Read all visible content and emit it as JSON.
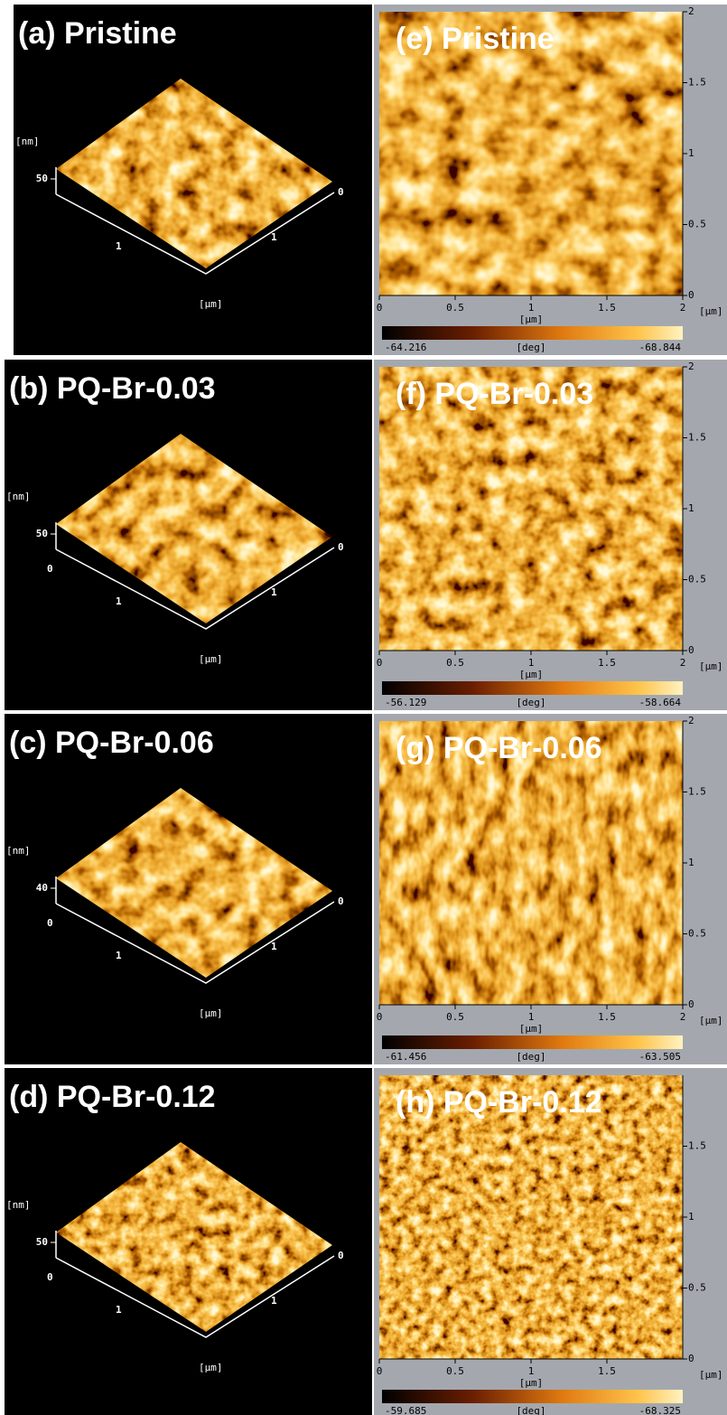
{
  "panels_3d": [
    {
      "label": "(a) Pristine",
      "z_unit": "[nm]",
      "z_tick": "50",
      "left_axis_ticks": [
        "1"
      ],
      "right_axis_ticks": [
        "0",
        "1"
      ],
      "xy_unit": "[µm]"
    },
    {
      "label": "(b) PQ-Br-0.03",
      "z_unit": "[nm]",
      "z_tick": "50",
      "left_axis_ticks": [
        "0",
        "1"
      ],
      "right_axis_ticks": [
        "0",
        "1"
      ],
      "xy_unit": "[µm]"
    },
    {
      "label": "(c) PQ-Br-0.06",
      "z_unit": "[nm]",
      "z_tick": "40",
      "left_axis_ticks": [
        "0",
        "1"
      ],
      "right_axis_ticks": [
        "0",
        "1"
      ],
      "xy_unit": "[µm]"
    },
    {
      "label": "(d) PQ-Br-0.12",
      "z_unit": "[nm]",
      "z_tick": "50",
      "left_axis_ticks": [
        "0",
        "1"
      ],
      "right_axis_ticks": [
        "0",
        "1"
      ],
      "xy_unit": "[µm]"
    }
  ],
  "panels_phase": [
    {
      "label": "(e) Pristine",
      "y_ticks": [
        "2",
        "1.5",
        "1",
        "0.5",
        "0"
      ],
      "x_ticks": [
        "0",
        "0.5",
        "1",
        "1.5",
        "2"
      ],
      "x_unit": "[µm]",
      "y_unit": "[µm]",
      "colorbar_min": "-64.216",
      "colorbar_unit": "[deg]",
      "colorbar_max": "-68.844"
    },
    {
      "label": "(f) PQ-Br-0.03",
      "y_ticks": [
        "2",
        "1.5",
        "1",
        "0.5",
        "0"
      ],
      "x_ticks": [
        "0",
        "0.5",
        "1",
        "1.5",
        "2"
      ],
      "x_unit": "[µm]",
      "y_unit": "[µm]",
      "colorbar_min": "-56.129",
      "colorbar_unit": "[deg]",
      "colorbar_max": "-58.664"
    },
    {
      "label": "(g) PQ-Br-0.06",
      "y_ticks": [
        "2",
        "1.5",
        "1",
        "0.5",
        "0"
      ],
      "x_ticks": [
        "0",
        "0.5",
        "1",
        "1.5",
        "2"
      ],
      "x_unit": "[µm]",
      "y_unit": "[µm]",
      "colorbar_min": "-61.456",
      "colorbar_unit": "[deg]",
      "colorbar_max": "-63.505"
    },
    {
      "label": "(h) PQ-Br-0.12",
      "y_ticks": [
        "1.5",
        "1",
        "0.5",
        "0"
      ],
      "x_ticks": [
        "0",
        "0.5",
        "1",
        "1.5"
      ],
      "x_unit": "[µm]",
      "y_unit": "[µm]",
      "colorbar_min": "-59.685",
      "colorbar_unit": "[deg]",
      "colorbar_max": "-68.325"
    }
  ]
}
